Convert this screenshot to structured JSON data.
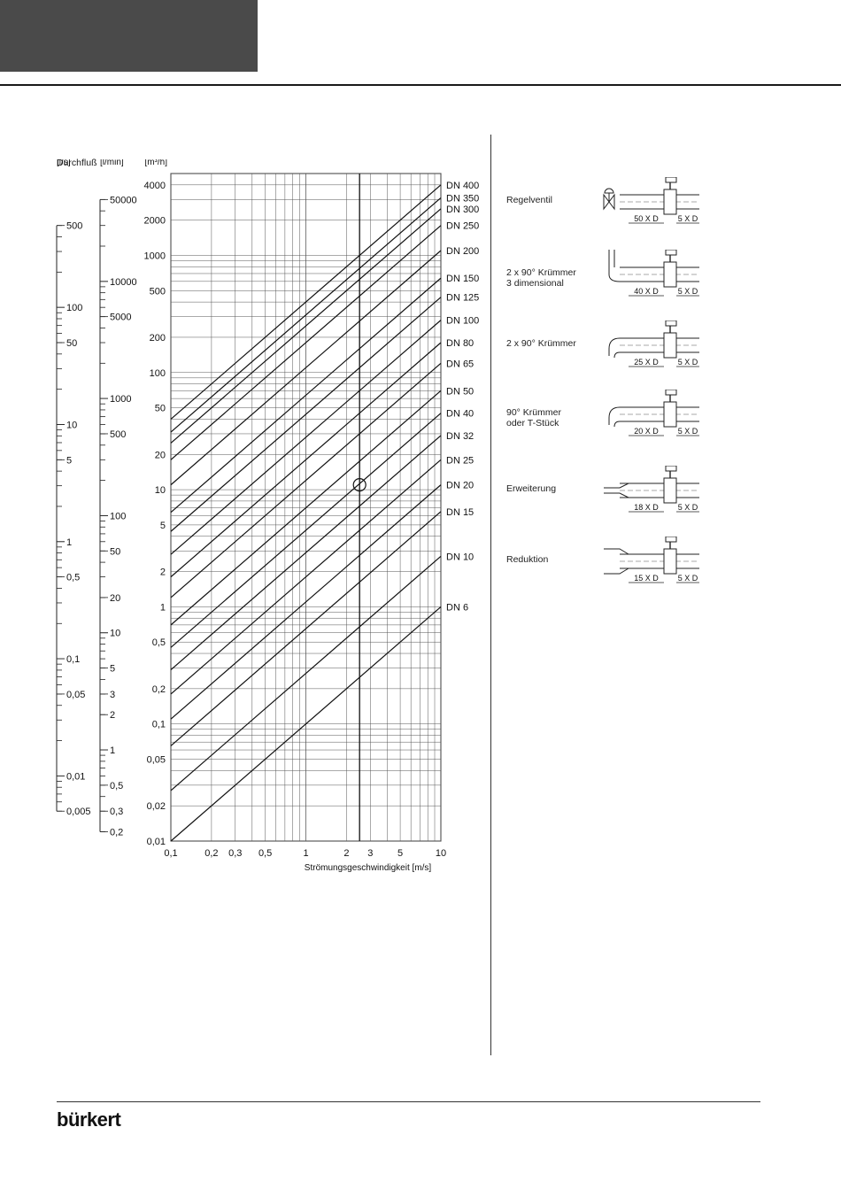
{
  "brand": {
    "logo_text": "bürkert"
  },
  "chart_data": {
    "type": "line",
    "title": "",
    "flow_label": "Durchfluß",
    "xlabel": "Strömungsgeschwindigkeit [m/s]",
    "x_scale": "log",
    "y_scale": "log",
    "xlim": [
      0.1,
      10
    ],
    "ylim": [
      0.01,
      5000
    ],
    "x_ticks": [
      "0,1",
      "0,2",
      "0,3",
      "0,5",
      "1",
      "2",
      "3",
      "5",
      "10"
    ],
    "x_tick_values": [
      0.1,
      0.2,
      0.3,
      0.5,
      1,
      2,
      3,
      5,
      10
    ],
    "y_unit": "[m³/h]",
    "y_ticks": [
      "4000",
      "2000",
      "1000",
      "500",
      "200",
      "100",
      "50",
      "20",
      "10",
      "5",
      "2",
      "1",
      "0,5",
      "0,2",
      "0,1",
      "0,05",
      "0,02",
      "0,01"
    ],
    "y_tick_values": [
      4000,
      2000,
      1000,
      500,
      200,
      100,
      50,
      20,
      10,
      5,
      2,
      1,
      0.5,
      0.2,
      0.1,
      0.05,
      0.02,
      0.01
    ],
    "ls_scale": {
      "unit": "[l/s]",
      "labels": [
        "500",
        "100",
        "50",
        "10",
        "5",
        "1",
        "0,5",
        "0,1",
        "0,05",
        "0,01",
        "0,005"
      ],
      "values": [
        500,
        100,
        50,
        10,
        5,
        1,
        0.5,
        0.1,
        0.05,
        0.01,
        0.005
      ]
    },
    "lmin_scale": {
      "unit": "[l/min]",
      "labels": [
        "50000",
        "10000",
        "5000",
        "1000",
        "500",
        "100",
        "50",
        "20",
        "10",
        "5",
        "3",
        "2",
        "1",
        "0,5",
        "0,3",
        "0,2"
      ],
      "values": [
        50000,
        10000,
        5000,
        1000,
        500,
        100,
        50,
        20,
        10,
        5,
        3,
        2,
        1,
        0.5,
        0.3,
        0.2
      ]
    },
    "series": [
      {
        "name": "DN 6",
        "values_at_x_0_1_and_10": [
          0.01,
          1.0
        ]
      },
      {
        "name": "DN 10",
        "values_at_x_0_1_and_10": [
          0.027,
          2.7
        ]
      },
      {
        "name": "DN 15",
        "values_at_x_0_1_and_10": [
          0.065,
          6.5
        ]
      },
      {
        "name": "DN 20",
        "values_at_x_0_1_and_10": [
          0.11,
          11
        ]
      },
      {
        "name": "DN 25",
        "values_at_x_0_1_and_10": [
          0.18,
          18
        ]
      },
      {
        "name": "DN 32",
        "values_at_x_0_1_and_10": [
          0.29,
          29
        ]
      },
      {
        "name": "DN 40",
        "values_at_x_0_1_and_10": [
          0.45,
          45
        ]
      },
      {
        "name": "DN 50",
        "values_at_x_0_1_and_10": [
          0.7,
          70
        ]
      },
      {
        "name": "DN 65",
        "values_at_x_0_1_and_10": [
          1.2,
          120
        ]
      },
      {
        "name": "DN 80",
        "values_at_x_0_1_and_10": [
          1.8,
          180
        ]
      },
      {
        "name": "DN 100",
        "values_at_x_0_1_and_10": [
          2.8,
          280
        ]
      },
      {
        "name": "DN 125",
        "values_at_x_0_1_and_10": [
          4.4,
          440
        ]
      },
      {
        "name": "DN 150",
        "values_at_x_0_1_and_10": [
          6.4,
          640
        ]
      },
      {
        "name": "DN 200",
        "values_at_x_0_1_and_10": [
          11,
          1100
        ]
      },
      {
        "name": "DN 250",
        "values_at_x_0_1_and_10": [
          18,
          1800
        ]
      },
      {
        "name": "DN 300",
        "values_at_x_0_1_and_10": [
          25,
          2500
        ]
      },
      {
        "name": "DN 350",
        "values_at_x_0_1_and_10": [
          31,
          3100
        ]
      },
      {
        "name": "DN 400",
        "values_at_x_0_1_and_10": [
          40,
          4000
        ]
      }
    ],
    "reference_line_x": 2.5,
    "example_point": {
      "x": 2.5,
      "y": 11
    }
  },
  "installations": [
    {
      "label": "Regelventil",
      "upstream": "50 X D",
      "downstream": "5 X D",
      "kind": "valve"
    },
    {
      "label": "2 x 90° Krümmer\n3 dimensional",
      "upstream": "40 X D",
      "downstream": "5 X D",
      "kind": "elbow3d"
    },
    {
      "label": "2 x 90° Krümmer",
      "upstream": "25 X D",
      "downstream": "5 X D",
      "kind": "elbow2"
    },
    {
      "label": "90° Krümmer\noder T-Stück",
      "upstream": "20 X D",
      "downstream": "5 X D",
      "kind": "elbow1"
    },
    {
      "label": "Erweiterung",
      "upstream": "18 X D",
      "downstream": "5 X D",
      "kind": "expansion"
    },
    {
      "label": "Reduktion",
      "upstream": "15 X D",
      "downstream": "5 X D",
      "kind": "reduction"
    }
  ]
}
